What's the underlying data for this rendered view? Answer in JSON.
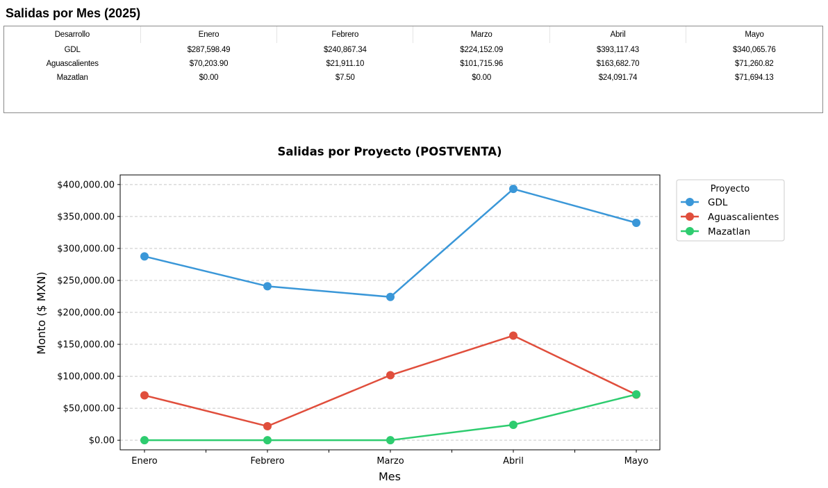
{
  "page": {
    "title": "Salidas por Mes (2025)"
  },
  "table": {
    "headers": [
      "Desarrollo",
      "Enero",
      "Febrero",
      "Marzo",
      "Abril",
      "Mayo"
    ],
    "rows": [
      [
        "GDL",
        "$287,598.49",
        "$240,867.34",
        "$224,152.09",
        "$393,117.43",
        "$340,065.76"
      ],
      [
        "Aguascalientes",
        "$70,203.90",
        "$21,911.10",
        "$101,715.96",
        "$163,682.70",
        "$71,260.82"
      ],
      [
        "Mazatlan",
        "$0.00",
        "$7.50",
        "$0.00",
        "$24,091.74",
        "$71,694.13"
      ]
    ]
  },
  "chart_data": {
    "type": "line",
    "title": "Salidas por Proyecto (POSTVENTA)",
    "xlabel": "Mes",
    "ylabel": "Monto ($ MXN)",
    "categories": [
      "Enero",
      "Febrero",
      "Marzo",
      "Abril",
      "Mayo"
    ],
    "ylim": [
      -15000,
      415000
    ],
    "yticks": [
      0,
      50000,
      100000,
      150000,
      200000,
      250000,
      300000,
      350000,
      400000
    ],
    "ytick_labels": [
      "$0.00",
      "$50,000.00",
      "$100,000.00",
      "$150,000.00",
      "$200,000.00",
      "$250,000.00",
      "$300,000.00",
      "$350,000.00",
      "$400,000.00"
    ],
    "grid": "horizontal dashed",
    "legend": {
      "title": "Proyecto",
      "placement": "outside-right-top"
    },
    "series": [
      {
        "name": "GDL",
        "color": "#3a97d8",
        "values": [
          287598.49,
          240867.34,
          224152.09,
          393117.43,
          340065.76
        ]
      },
      {
        "name": "Aguascalientes",
        "color": "#e04e3c",
        "values": [
          70203.9,
          21911.1,
          101715.96,
          163682.7,
          71260.82
        ]
      },
      {
        "name": "Mazatlan",
        "color": "#2ecc6f",
        "values": [
          0.0,
          7.5,
          0.0,
          24091.74,
          71694.13
        ]
      }
    ]
  }
}
